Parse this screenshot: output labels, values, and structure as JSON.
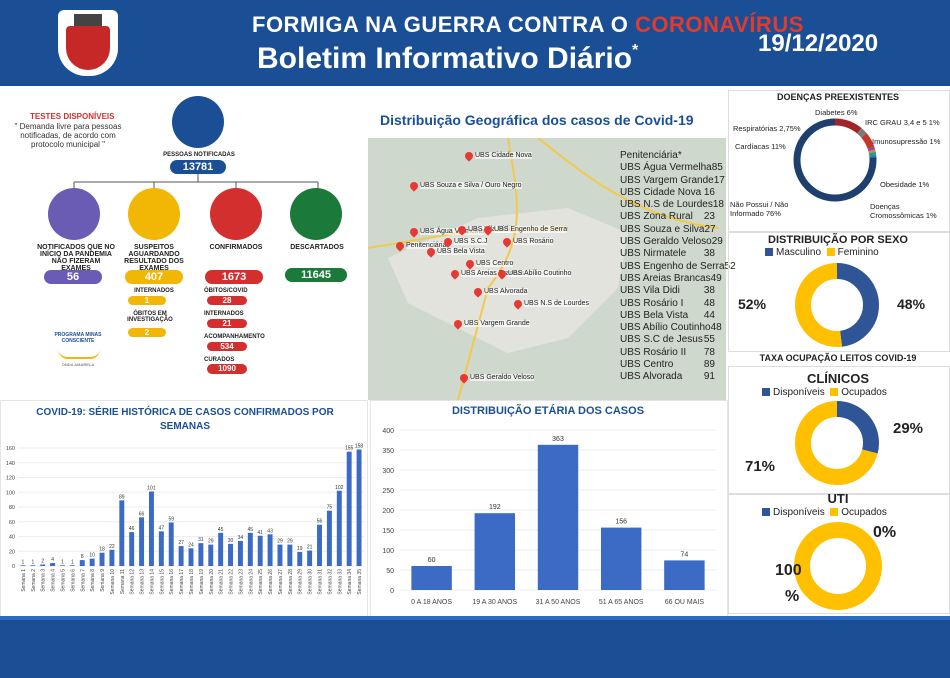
{
  "header": {
    "title_line1_prefix": "FORMIGA NA GUERRA CONTRA O ",
    "title_line1_highlight": "CORONAVÍRUS",
    "title_line2": "Boletim Informativo Diário",
    "asterisk": "*",
    "date": "19/12/2020",
    "crest_label": "FORMIGA"
  },
  "testes": {
    "title": "TESTES DISPONÍVEIS",
    "note": "\" Demanda livre para pessoas notificadas, de acordo com protocolo municipal \""
  },
  "fluxo": {
    "notificadas_label": "PESSOAS NOTIFICADAS",
    "notificadas_value": "13781",
    "nao_fizeram_label": "NOTIFICADOS QUE NO INÍCIO DA PANDEMIA NÃO FIZERAM EXAMES",
    "nao_fizeram_value": "56",
    "suspeitos_label": "SUSPEITOS AGUARDANDO RESULTADO DOS EXAMES",
    "suspeitos_value": "407",
    "internados_label": "INTERNADOS",
    "internados_value": "1",
    "obitos_inv_label": "ÓBITOS EM INVESTIGAÇÃO",
    "obitos_inv_value": "2",
    "confirmados_label": "CONFIRMADOS",
    "confirmados_value": "1673",
    "obitos_covid_label": "ÓBITOS/COVID",
    "obitos_covid_value": "28",
    "conf_internados_label": "INTERNADOS",
    "conf_internados_value": "21",
    "acompanhamento_label": "ACOMPANHAMENTO",
    "acompanhamento_value": "534",
    "curados_label": "CURADOS",
    "curados_value": "1090",
    "descartados_label": "DESCARTADOS",
    "descartados_value": "11645",
    "programa_label": "PROGRAMA MINAS CONSCIENTE",
    "onda_label": "ONDA AMARELA"
  },
  "colors": {
    "blue": "#1a4f96",
    "purple": "#6a5bb5",
    "yellow": "#f2b705",
    "red": "#d32f2f",
    "green": "#1b7a3a",
    "bar": "#3c6bc5",
    "donut_blue": "#2f5597",
    "donut_yellow": "#ffc000"
  },
  "mapa": {
    "title": "Distribuição Geográfica dos casos de Covid-19",
    "pins": [
      "UBS Cidade Nova",
      "UBS Souza e Silva / Ouro Negro",
      "UBS Água Vermelha",
      "UBS Vila Didi",
      "UBS Engenho de Serra",
      "Penitenciária",
      "UBS S.C.J",
      "UBS Rosário",
      "UBS Bela Vista",
      "UBS Centro",
      "UBS Areias Brancas",
      "UBS Abílio Coutinho",
      "UBS Alvorada",
      "UBS N.S de Lourdes",
      "UBS Vargem Grande",
      "UBS Geraldo Veloso"
    ],
    "ubs_list": [
      {
        "name": "Penitenciária*",
        "value": ""
      },
      {
        "name": "UBS Água Vermelha",
        "value": "85"
      },
      {
        "name": "UBS Vargem Grande",
        "value": "17"
      },
      {
        "name": "UBS Cidade Nova",
        "value": "16"
      },
      {
        "name": "UBS N.S de Lourdes",
        "value": "18"
      },
      {
        "name": "UBS Zona Rural",
        "value": "23"
      },
      {
        "name": "UBS Souza e Silva",
        "value": "27"
      },
      {
        "name": "UBS Geraldo Veloso",
        "value": "29"
      },
      {
        "name": "UBS Nirmatele",
        "value": "38"
      },
      {
        "name": "UBS Engenho de Serra",
        "value": "52"
      },
      {
        "name": "UBS Areias Brancas",
        "value": "49"
      },
      {
        "name": "UBS Vila Didi",
        "value": "38"
      },
      {
        "name": "UBS Rosário I",
        "value": "48"
      },
      {
        "name": "UBS Bela Vista",
        "value": "44"
      },
      {
        "name": "UBS Abílio Coutinho",
        "value": "48"
      },
      {
        "name": "UBS S.C de Jesus",
        "value": "55"
      },
      {
        "name": "UBS Rosário II",
        "value": "78"
      },
      {
        "name": "UBS Centro",
        "value": "89"
      },
      {
        "name": "UBS Alvorada",
        "value": "91"
      }
    ]
  },
  "doencas": {
    "title": "DOENÇAS PREEXISTENTES",
    "labels": {
      "diabetes": "Diabetes 6%",
      "irc": "IRC GRAU 3,4 e 5 1%",
      "respiratorias": "Respiratórias 2,75%",
      "imuno": "Imunosupressão 1%",
      "cardiacas": "Cardíacas 11%",
      "obesidade": "Obesidade 1%",
      "nao_possui": "Não Possui / Não Informado 76%",
      "cromossomicas": "Doenças Cromossômicas 1%"
    },
    "slices": [
      76,
      11,
      2.75,
      6,
      1,
      1,
      1,
      1
    ]
  },
  "sexo": {
    "title": "DISTRIBUIÇÃO POR SEXO",
    "legend": [
      "Masculino",
      "Feminino"
    ],
    "masculino_pct": 48,
    "feminino_pct": 52,
    "masculino_label": "48%",
    "feminino_label": "52%"
  },
  "leitos": {
    "title": "TAXA OCUPAÇÃO LEITOS COVID-19",
    "clinicos_title": "CLÍNICOS",
    "legend": [
      "Disponíveis",
      "Ocupados"
    ],
    "clinicos_disp_pct": 29,
    "clinicos_ocup_pct": 71,
    "clinicos_disp_label": "29%",
    "clinicos_ocup_label": "71%",
    "uti_title": "UTI",
    "uti_disp_pct": 0,
    "uti_ocup_pct": 100,
    "uti_disp_label": "0%",
    "uti_ocup_label_a": "100",
    "uti_ocup_label_b": "%"
  },
  "chart_data": [
    {
      "type": "bar",
      "title": "COVID-19: SÉRIE HISTÓRICA DE CASOS CONFIRMADOS POR SEMANAS",
      "categories": [
        "Semana 1",
        "Semana 2",
        "Semana 3",
        "Semana 4",
        "Semana 5",
        "Semana 6",
        "Semana 7",
        "Semana 8",
        "Semana 9",
        "Semana 10",
        "Semana 11",
        "Semana 12",
        "Semana 13",
        "Semana 14",
        "Semana 15",
        "Semana 16",
        "Semana 17",
        "Semana 18",
        "Semana 19",
        "Semana 20",
        "Semana 21",
        "Semana 22",
        "Semana 23",
        "Semana 24",
        "Semana 25",
        "Semana 26",
        "Semana 27",
        "Semana 28",
        "Semana 29",
        "Semana 30",
        "Semana 31",
        "Semana 32",
        "Semana 33",
        "Semana 34",
        "Semana 35"
      ],
      "values": [
        1,
        1,
        2,
        4,
        1,
        1,
        8,
        10,
        18,
        22,
        89,
        46,
        66,
        101,
        47,
        59,
        27,
        24,
        31,
        29,
        45,
        30,
        34,
        45,
        41,
        43,
        29,
        29,
        19,
        21,
        56,
        75,
        102,
        155,
        158
      ],
      "data_labels": [
        "1",
        "1",
        "2",
        "4",
        "1",
        "1",
        "8",
        "10",
        "18",
        "22",
        "89",
        "46",
        "66",
        "101",
        "47",
        "59",
        "27",
        "24",
        "31",
        "29",
        "45",
        "30",
        "34",
        "45",
        "41",
        "43",
        "29",
        "29",
        "19",
        "21",
        "56",
        "75",
        "102",
        "155",
        "158"
      ],
      "yticks": [
        "0",
        "20",
        "40",
        "60",
        "80",
        "100",
        "120",
        "140",
        "160"
      ],
      "ylim": [
        0,
        160
      ]
    },
    {
      "type": "bar",
      "title": "DISTRIBUIÇÃO ETÁRIA DOS CASOS",
      "categories": [
        "0 A 18 ANOS",
        "19 A 30 ANOS",
        "31 A 50 ANOS",
        "51 A 65 ANOS",
        "66 OU MAIS"
      ],
      "values": [
        60,
        192,
        363,
        156,
        74
      ],
      "yticks": [
        "0",
        "50",
        "100",
        "150",
        "200",
        "250",
        "300",
        "350",
        "400"
      ],
      "ylim": [
        0,
        400
      ]
    }
  ]
}
